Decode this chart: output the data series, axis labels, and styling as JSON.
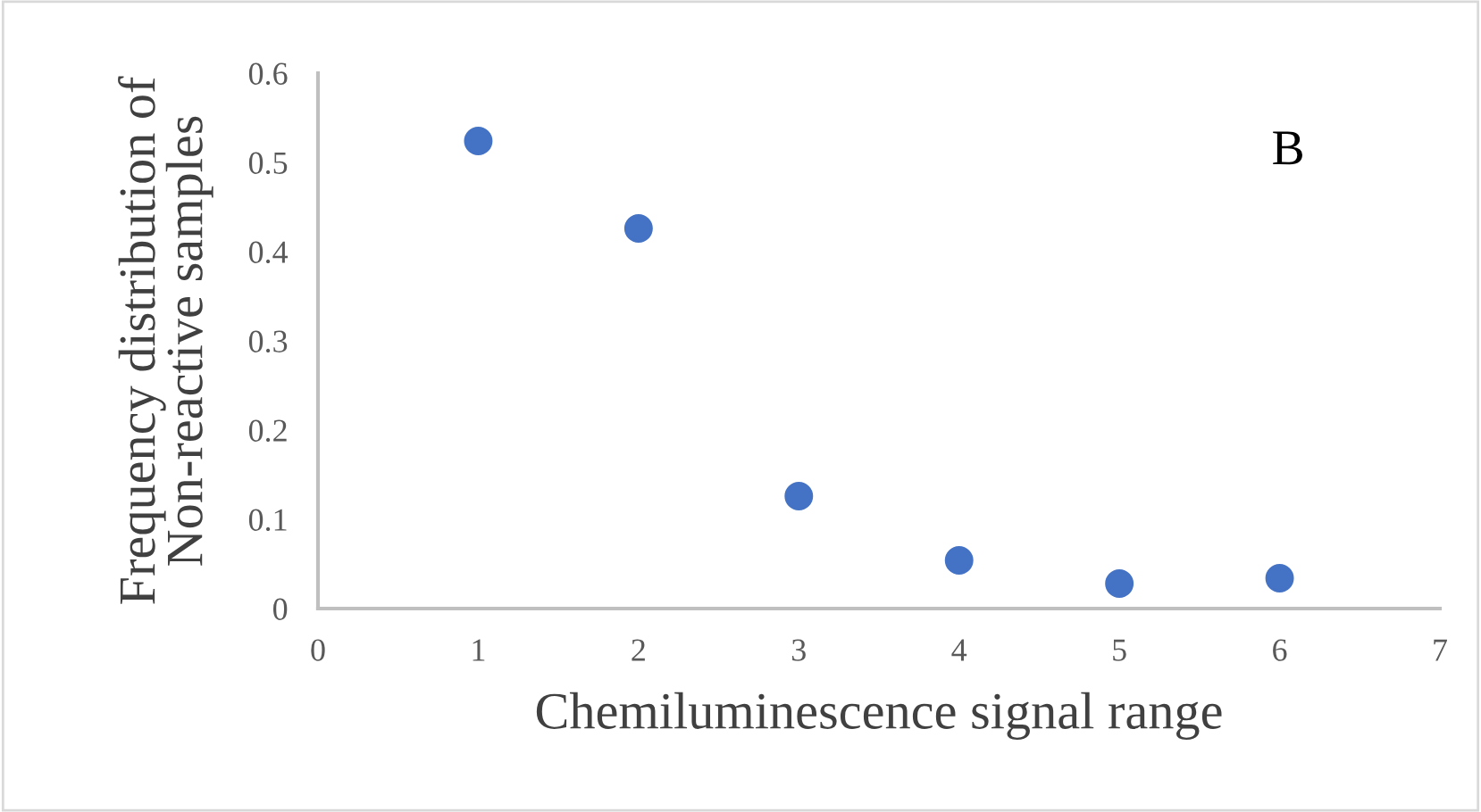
{
  "chart_data": {
    "type": "scatter",
    "xlabel": "Chemiluminescence signal range",
    "ylabel": "Frequency distribution of\nNon-reactive samples",
    "x": [
      1,
      2,
      3,
      4,
      5,
      6
    ],
    "series": [
      {
        "color": "#4472c4",
        "values": [
          0.524,
          0.426,
          0.126,
          0.054,
          0.028,
          0.034
        ]
      }
    ],
    "xlim": [
      0,
      7
    ],
    "xticks": [
      0,
      1,
      2,
      3,
      4,
      5,
      6,
      7
    ],
    "ylim": [
      0,
      0.6
    ],
    "yticks": [
      0,
      0.1,
      0.2,
      0.3,
      0.4,
      0.5,
      0.6
    ],
    "grid": false,
    "legend": false,
    "marker": "circle",
    "annotations": [
      "B"
    ]
  }
}
